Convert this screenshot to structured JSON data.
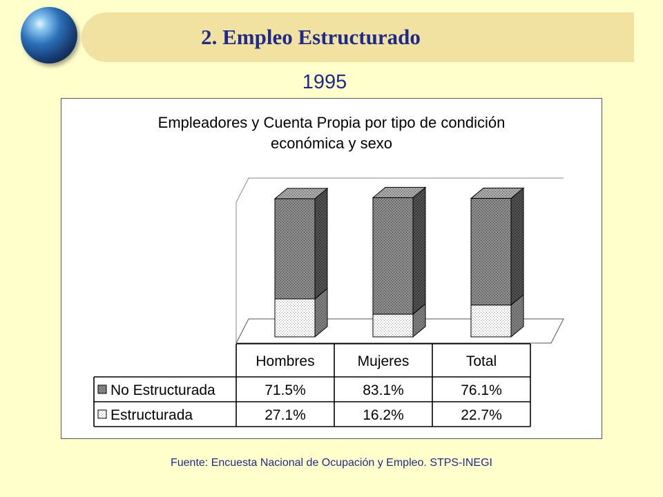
{
  "header": {
    "title": "2. Empleo Estructurado",
    "year": "1995"
  },
  "footer": {
    "source": "Fuente: Encuesta Nacional de Ocupación y Empleo. STPS-INEGI"
  },
  "colors": {
    "background": "#FFFFCC",
    "banner": "#F2E2A2",
    "title_text": "#1F2A8A"
  },
  "chart_data": {
    "type": "bar",
    "stacked": true,
    "three_d": true,
    "title": "Empleadores y Cuenta Propia por tipo de condición económica y sexo",
    "title_lines": [
      "Empleadores y Cuenta Propia por tipo de condición",
      "económica y sexo"
    ],
    "categories": [
      "Hombres",
      "Mujeres",
      "Total"
    ],
    "series": [
      {
        "name": "No Estructurada",
        "values": [
          71.5,
          83.1,
          76.1
        ],
        "labels": [
          "71.5%",
          "83.1%",
          "76.1%"
        ],
        "fill": "dark-dotted"
      },
      {
        "name": "Estructurada",
        "values": [
          27.1,
          16.2,
          22.7
        ],
        "labels": [
          "27.1%",
          "16.2%",
          "22.7%"
        ],
        "fill": "light-dotted"
      }
    ],
    "data_table": true,
    "grid": false,
    "legend": "data-table"
  }
}
